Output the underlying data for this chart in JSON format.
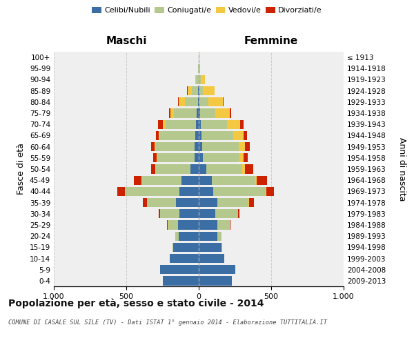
{
  "age_groups": [
    "0-4",
    "5-9",
    "10-14",
    "15-19",
    "20-24",
    "25-29",
    "30-34",
    "35-39",
    "40-44",
    "45-49",
    "50-54",
    "55-59",
    "60-64",
    "65-69",
    "70-74",
    "75-79",
    "80-84",
    "85-89",
    "90-94",
    "95-99",
    "100+"
  ],
  "birth_years": [
    "2009-2013",
    "2004-2008",
    "1999-2003",
    "1994-1998",
    "1989-1993",
    "1984-1988",
    "1979-1983",
    "1974-1978",
    "1969-1973",
    "1964-1968",
    "1959-1963",
    "1954-1958",
    "1949-1953",
    "1944-1948",
    "1939-1943",
    "1934-1938",
    "1929-1933",
    "1924-1928",
    "1919-1923",
    "1914-1918",
    "≤ 1913"
  ],
  "males": {
    "celibe": [
      250,
      265,
      200,
      175,
      140,
      145,
      135,
      155,
      135,
      120,
      55,
      30,
      30,
      22,
      20,
      13,
      6,
      3,
      2,
      1,
      1
    ],
    "coniugato": [
      0,
      0,
      0,
      5,
      20,
      65,
      130,
      200,
      370,
      270,
      240,
      255,
      270,
      245,
      210,
      160,
      90,
      45,
      15,
      3,
      0
    ],
    "vedovo": [
      0,
      0,
      0,
      0,
      0,
      2,
      2,
      3,
      3,
      5,
      5,
      5,
      5,
      10,
      20,
      20,
      40,
      30,
      8,
      2,
      0
    ],
    "divorziato": [
      0,
      0,
      0,
      0,
      3,
      5,
      10,
      30,
      55,
      55,
      30,
      25,
      25,
      20,
      30,
      10,
      5,
      2,
      0,
      0,
      0
    ]
  },
  "females": {
    "nubile": [
      230,
      250,
      175,
      155,
      130,
      130,
      115,
      130,
      100,
      90,
      50,
      28,
      25,
      20,
      15,
      10,
      6,
      4,
      2,
      1,
      1
    ],
    "coniugata": [
      0,
      0,
      0,
      5,
      25,
      80,
      155,
      215,
      360,
      300,
      250,
      255,
      250,
      220,
      180,
      105,
      60,
      25,
      10,
      2,
      0
    ],
    "vedova": [
      0,
      0,
      0,
      0,
      0,
      2,
      2,
      3,
      5,
      10,
      20,
      25,
      45,
      70,
      90,
      100,
      100,
      80,
      30,
      8,
      2
    ],
    "divorziata": [
      0,
      0,
      0,
      0,
      3,
      5,
      10,
      35,
      55,
      70,
      55,
      30,
      30,
      25,
      25,
      10,
      5,
      2,
      0,
      0,
      0
    ]
  },
  "colors": {
    "celibe": "#3a6ea5",
    "coniugato": "#b5c98e",
    "vedovo": "#f5c842",
    "divorziato": "#cc2200"
  },
  "xlim": 1000,
  "title": "Popolazione per età, sesso e stato civile - 2014",
  "subtitle": "COMUNE DI CASALE SUL SILE (TV) - Dati ISTAT 1° gennaio 2014 - Elaborazione TUTTITALIA.IT",
  "ylabel_left": "Fasce di età",
  "ylabel_right": "Anni di nascita",
  "xlabel_left": "Maschi",
  "xlabel_right": "Femmine",
  "bg_color": "#efefef",
  "grid_color": "#cccccc",
  "legend_labels": [
    "Celibi/Nubili",
    "Coniugati/e",
    "Vedovi/e",
    "Divorziati/e"
  ]
}
